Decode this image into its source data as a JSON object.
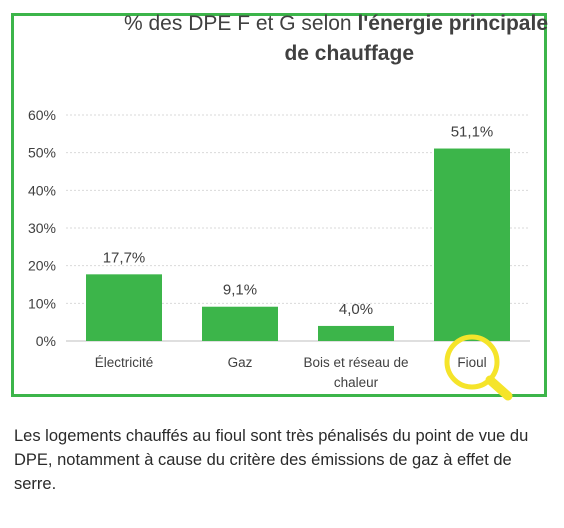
{
  "chart_data": {
    "type": "bar",
    "title_regular": "% des DPE F et G selon ",
    "title_bold_1": "l'énergie principale",
    "title_bold_2": "de chauffage",
    "categories": [
      "Électricité",
      "Gaz",
      "Bois et réseau de chaleur",
      "Fioul"
    ],
    "category_label_lines": [
      [
        "Électricité"
      ],
      [
        "Gaz"
      ],
      [
        "Bois et réseau de",
        "chaleur"
      ],
      [
        "Fioul"
      ]
    ],
    "values": [
      17.7,
      9.1,
      4.0,
      51.1
    ],
    "data_labels": [
      "17,7%",
      "9,1%",
      "4,0%",
      "51,1%"
    ],
    "yticks": [
      "0%",
      "10%",
      "20%",
      "30%",
      "40%",
      "50%",
      "60%"
    ],
    "ylim": [
      0,
      60
    ],
    "grid": true,
    "highlight_category": "Fioul",
    "highlight_icon": "magnifier-icon",
    "colors": {
      "bar": "#3cb54a",
      "frame": "#3cb54a",
      "highlight": "#f5e42a",
      "grid": "#d9d9d9",
      "text": "#404040"
    }
  },
  "caption": "Les logements chauffés au fioul sont très pénalisés du point de vue du DPE, notamment à cause du critère des émissions de gaz à effet de serre."
}
